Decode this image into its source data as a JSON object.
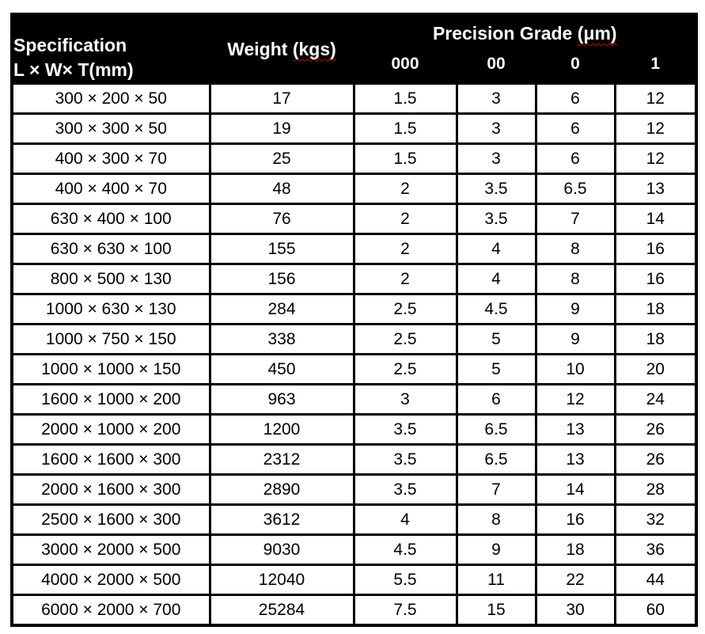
{
  "table": {
    "header": {
      "spec_line1": "Specification",
      "spec_line2": "L × W× T(mm)",
      "weight_prefix": "Weight",
      "weight_unit": "(kgs)",
      "precision_prefix": "Precision Grade",
      "precision_unit": "(μm)",
      "grade_columns": [
        "000",
        "00",
        "0",
        "1"
      ]
    },
    "rows": [
      [
        "300 × 200 × 50",
        "17",
        "1.5",
        "3",
        "6",
        "12"
      ],
      [
        "300 × 300 × 50",
        "19",
        "1.5",
        "3",
        "6",
        "12"
      ],
      [
        "400 × 300 × 70",
        "25",
        "1.5",
        "3",
        "6",
        "12"
      ],
      [
        "400 × 400 × 70",
        "48",
        "2",
        "3.5",
        "6.5",
        "13"
      ],
      [
        "630 × 400 × 100",
        "76",
        "2",
        "3.5",
        "7",
        "14"
      ],
      [
        "630 × 630 × 100",
        "155",
        "2",
        "4",
        "8",
        "16"
      ],
      [
        "800 × 500 × 130",
        "156",
        "2",
        "4",
        "8",
        "16"
      ],
      [
        "1000 × 630 × 130",
        "284",
        "2.5",
        "4.5",
        "9",
        "18"
      ],
      [
        "1000 × 750 × 150",
        "338",
        "2.5",
        "5",
        "9",
        "18"
      ],
      [
        "1000 × 1000 × 150",
        "450",
        "2.5",
        "5",
        "10",
        "20"
      ],
      [
        "1600 × 1000 × 200",
        "963",
        "3",
        "6",
        "12",
        "24"
      ],
      [
        "2000 × 1000 × 200",
        "1200",
        "3.5",
        "6.5",
        "13",
        "26"
      ],
      [
        "1600 × 1600 × 300",
        "2312",
        "3.5",
        "6.5",
        "13",
        "26"
      ],
      [
        "2000 × 1600 × 300",
        "2890",
        "3.5",
        "7",
        "14",
        "28"
      ],
      [
        "2500 × 1600 × 300",
        "3612",
        "4",
        "8",
        "16",
        "32"
      ],
      [
        "3000 × 2000 × 500",
        "9030",
        "4.5",
        "9",
        "18",
        "36"
      ],
      [
        "4000 × 2000 × 500",
        "12040",
        "5.5",
        "11",
        "22",
        "44"
      ],
      [
        "6000 × 2000 × 700",
        "25284",
        "7.5",
        "15",
        "30",
        "60"
      ]
    ],
    "cell_names": [
      "spec-cell",
      "weight-cell",
      "grade-000-cell",
      "grade-00-cell",
      "grade-0-cell",
      "grade-1-cell"
    ]
  },
  "colors": {
    "header_bg": "#000000",
    "header_text": "#ffffff",
    "body_bg": "#ffffff",
    "body_text": "#000000",
    "border": "#000000",
    "spellcheck_underline": "#cc0000"
  }
}
